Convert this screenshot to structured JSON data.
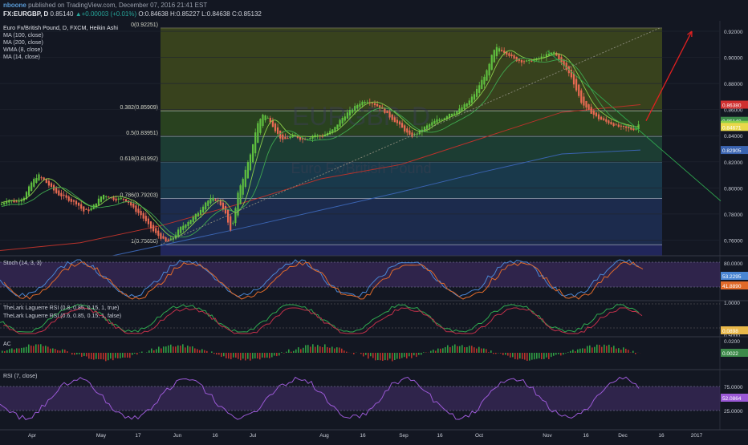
{
  "header": {
    "author": "nboone",
    "published_text": "published on TradingView.com, December 07, 2016 21:41 EST",
    "symbol": "FX:EURGBP, D",
    "last": "0.85140",
    "change": "+0.00003 (+0.01%)",
    "open": "O:0.84638",
    "high": "H:0.85227",
    "low": "L:0.84638",
    "close": "C:0.85132"
  },
  "main_legend": [
    "Euro Fx/British Pound, D, FXCM, Heikin Ashi",
    "MA (100, close)",
    "MA (200, close)",
    "WMA (8, close)",
    "MA (14, close)"
  ],
  "watermark": {
    "symbol": "EURGBP, D",
    "name": "Euro Fx/British Pound"
  },
  "colors": {
    "background": "#131722",
    "bull": "#5fbf3f",
    "bear": "#e86a52",
    "ma100": "#b8322b",
    "ma200": "#3a63b0",
    "wma8": "#8ccf4a",
    "ma14": "#7dd05a",
    "trend_arrow": "#e02020",
    "stoch_k": "#4a86d4",
    "stoch_d": "#e06a2a",
    "laguerre_a": "#2fa84f",
    "laguerre_b": "#c0304a",
    "rsi": "#9b59d6"
  },
  "chart_data": [
    {
      "type": "candlestick",
      "title": "Euro Fx/British Pound, D, FXCM, Heikin Ashi",
      "ylim": [
        0.748,
        0.928
      ],
      "x_ticks": [
        "Apr",
        "May",
        "17",
        "Jun",
        "16",
        "Jul",
        "Aug",
        "16",
        "Sep",
        "16",
        "Oct",
        "Nov",
        "16",
        "Dec",
        "16",
        "2017"
      ],
      "y_ticks": [
        "0.92000",
        "0.90000",
        "0.88000",
        "0.86000",
        "0.84000",
        "0.82000",
        "0.80000",
        "0.78000",
        "0.76000"
      ],
      "fib_levels": [
        {
          "label": "0(0.92251)",
          "value": 0.92251
        },
        {
          "label": "0.382(0.85909)",
          "value": 0.85909
        },
        {
          "label": "0.5(0.83951)",
          "value": 0.83951
        },
        {
          "label": "0.618(0.81992)",
          "value": 0.81992
        },
        {
          "label": "0.786(0.79203)",
          "value": 0.79203
        },
        {
          "label": "1(0.75650)",
          "value": 0.7565
        }
      ],
      "price_labels": [
        {
          "text": "0.86380",
          "value": 0.8638,
          "color": "#d03030"
        },
        {
          "text": "0.85140",
          "value": 0.8514,
          "color": "#3d8a4a"
        },
        {
          "text": "0.84895",
          "value": 0.84895,
          "color": "#8ccf4a"
        },
        {
          "text": "0.84671",
          "value": 0.84671,
          "color": "#e9d84a"
        },
        {
          "text": "0.82905",
          "value": 0.82905,
          "color": "#3a63b0"
        }
      ],
      "close_path": [
        [
          0,
          0.787
        ],
        [
          10,
          0.791
        ],
        [
          20,
          0.789
        ],
        [
          30,
          0.793
        ],
        [
          40,
          0.805
        ],
        [
          48,
          0.81
        ],
        [
          56,
          0.805
        ],
        [
          64,
          0.8
        ],
        [
          72,
          0.795
        ],
        [
          80,
          0.793
        ],
        [
          88,
          0.79
        ],
        [
          96,
          0.788
        ],
        [
          104,
          0.782
        ],
        [
          112,
          0.783
        ],
        [
          120,
          0.789
        ],
        [
          128,
          0.795
        ],
        [
          136,
          0.793
        ],
        [
          144,
          0.791
        ],
        [
          152,
          0.792
        ],
        [
          160,
          0.789
        ],
        [
          168,
          0.783
        ],
        [
          176,
          0.779
        ],
        [
          184,
          0.772
        ],
        [
          192,
          0.766
        ],
        [
          200,
          0.762
        ],
        [
          208,
          0.758
        ],
        [
          216,
          0.762
        ],
        [
          224,
          0.769
        ],
        [
          232,
          0.773
        ],
        [
          240,
          0.777
        ],
        [
          248,
          0.782
        ],
        [
          256,
          0.789
        ],
        [
          264,
          0.792
        ],
        [
          272,
          0.79
        ],
        [
          280,
          0.782
        ],
        [
          288,
          0.765
        ],
        [
          296,
          0.795
        ],
        [
          304,
          0.81
        ],
        [
          312,
          0.825
        ],
        [
          320,
          0.848
        ],
        [
          328,
          0.857
        ],
        [
          336,
          0.852
        ],
        [
          344,
          0.843
        ],
        [
          352,
          0.836
        ],
        [
          360,
          0.839
        ],
        [
          368,
          0.84
        ],
        [
          376,
          0.837
        ],
        [
          384,
          0.838
        ],
        [
          392,
          0.841
        ],
        [
          400,
          0.839
        ],
        [
          408,
          0.842
        ],
        [
          416,
          0.845
        ],
        [
          424,
          0.852
        ],
        [
          432,
          0.857
        ],
        [
          440,
          0.861
        ],
        [
          448,
          0.865
        ],
        [
          456,
          0.867
        ],
        [
          464,
          0.865
        ],
        [
          472,
          0.862
        ],
        [
          480,
          0.858
        ],
        [
          488,
          0.853
        ],
        [
          496,
          0.849
        ],
        [
          504,
          0.844
        ],
        [
          512,
          0.839
        ],
        [
          520,
          0.842
        ],
        [
          528,
          0.846
        ],
        [
          536,
          0.849
        ],
        [
          544,
          0.852
        ],
        [
          552,
          0.853
        ],
        [
          560,
          0.857
        ],
        [
          568,
          0.858
        ],
        [
          576,
          0.862
        ],
        [
          584,
          0.866
        ],
        [
          592,
          0.873
        ],
        [
          600,
          0.882
        ],
        [
          608,
          0.891
        ],
        [
          614,
          0.904
        ],
        [
          620,
          0.908
        ],
        [
          626,
          0.905
        ],
        [
          634,
          0.902
        ],
        [
          642,
          0.898
        ],
        [
          650,
          0.897
        ],
        [
          658,
          0.897
        ],
        [
          666,
          0.898
        ],
        [
          674,
          0.9
        ],
        [
          682,
          0.902
        ],
        [
          690,
          0.904
        ],
        [
          696,
          0.899
        ],
        [
          704,
          0.892
        ],
        [
          712,
          0.885
        ],
        [
          718,
          0.875
        ],
        [
          724,
          0.866
        ],
        [
          730,
          0.861
        ],
        [
          738,
          0.857
        ],
        [
          746,
          0.853
        ],
        [
          754,
          0.851
        ],
        [
          762,
          0.849
        ],
        [
          770,
          0.847
        ],
        [
          778,
          0.846
        ],
        [
          786,
          0.845
        ],
        [
          792,
          0.845
        ],
        [
          798,
          0.851
        ]
      ],
      "ma100": [
        [
          0,
          0.752
        ],
        [
          100,
          0.758
        ],
        [
          200,
          0.771
        ],
        [
          300,
          0.788
        ],
        [
          400,
          0.807
        ],
        [
          500,
          0.818
        ],
        [
          600,
          0.838
        ],
        [
          700,
          0.858
        ],
        [
          798,
          0.8638
        ]
      ],
      "ma200": [
        [
          140,
          0.748
        ],
        [
          300,
          0.769
        ],
        [
          400,
          0.783
        ],
        [
          500,
          0.797
        ],
        [
          600,
          0.812
        ],
        [
          700,
          0.826
        ],
        [
          798,
          0.82905
        ]
      ],
      "trend_arrow": {
        "from": [
          805,
          0.8514
        ],
        "to": [
          862,
          0.92
        ]
      },
      "trend_lines": [
        {
          "from": [
            200,
            0.7565
          ],
          "to": [
            822,
            0.92251
          ],
          "style": "dotted",
          "color": "#8a8a7a"
        },
        {
          "from": [
            682,
            0.905
          ],
          "to": [
            898,
            0.79
          ],
          "style": "solid",
          "color": "#2fa84f"
        }
      ]
    },
    {
      "type": "line",
      "title": "Stoch (14, 3, 3)",
      "y_ticks": [
        "80.0000"
      ],
      "price_labels": [
        {
          "text": "53.2295",
          "value": 53.2295,
          "color": "#4a86d4"
        },
        {
          "text": "41.8890",
          "value": 41.889,
          "color": "#e06a2a"
        }
      ],
      "bands": [
        20,
        80
      ]
    },
    {
      "type": "line",
      "title": "TheLark Laguerre RSI (0.8, 0.85, 0.15, 1, true)",
      "title2": "TheLark Laguerre RSI (0.6, 0.85, 0.15, 1, false)",
      "y_ticks": [
        "1.0000",
        "0.5000"
      ],
      "price_labels": [
        {
          "text": "0.0898",
          "value": 0.0898,
          "color": "#e9b84a"
        }
      ]
    },
    {
      "type": "bar",
      "title": "AC",
      "y_ticks": [
        "0.0200"
      ],
      "price_labels": [
        {
          "text": "0.0022",
          "value": 0.0022,
          "color": "#3d8a4a"
        }
      ]
    },
    {
      "type": "line",
      "title": "RSI (7, close)",
      "y_ticks": [
        "75.0000",
        "25.0000"
      ],
      "price_labels": [
        {
          "text": "52.0864",
          "value": 52.0864,
          "color": "#9b59d6"
        }
      ],
      "bands": [
        30,
        70
      ]
    }
  ]
}
